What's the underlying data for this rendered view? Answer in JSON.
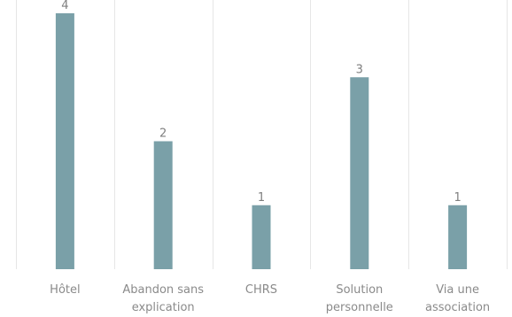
{
  "chart_data": {
    "type": "bar",
    "categories": [
      [
        "Hôtel"
      ],
      [
        "Abandon sans",
        "explication"
      ],
      [
        "CHRS"
      ],
      [
        "Solution",
        "personnelle"
      ],
      [
        "Via une",
        "association"
      ]
    ],
    "values": [
      4,
      2,
      1,
      3,
      1
    ],
    "data_labels": [
      "4",
      "2",
      "1",
      "3",
      "1"
    ],
    "ylim": [
      0,
      4
    ],
    "bar_color": "#7aa0a8",
    "label_color": "#7f7f7f",
    "grid": false,
    "legend": "none",
    "title": "",
    "xlabel": "",
    "ylabel": ""
  }
}
